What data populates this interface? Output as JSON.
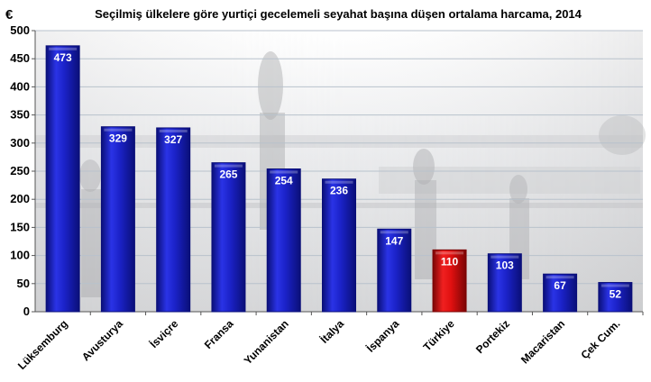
{
  "chart_data": {
    "type": "bar",
    "title": "Seçilmiş ülkelere göre yurtiçi gecelemeli seyahat başına düşen ortalama harcama, 2014",
    "ylabel": "€",
    "xlabel": "",
    "ylim": [
      0,
      500
    ],
    "yticks": [
      0,
      50,
      100,
      150,
      200,
      250,
      300,
      350,
      400,
      450,
      500
    ],
    "grid": true,
    "categories": [
      "Lüksemburg",
      "Avusturya",
      "İsviçre",
      "Fransa",
      "Yunanistan",
      "İtalya",
      "İspanya",
      "Türkiye",
      "Portekiz",
      "Macaristan",
      "Çek Cum."
    ],
    "values": [
      473,
      329,
      327,
      265,
      254,
      236,
      147,
      110,
      103,
      67,
      52
    ],
    "highlight": "Türkiye",
    "colors": {
      "bar": "#1b22c8",
      "bar_dark": "#0a0f78",
      "highlight": "#e01010",
      "highlight_dark": "#7a0505",
      "grid": "#b8c2cc",
      "label_highlight": "#ffd7d7"
    }
  }
}
